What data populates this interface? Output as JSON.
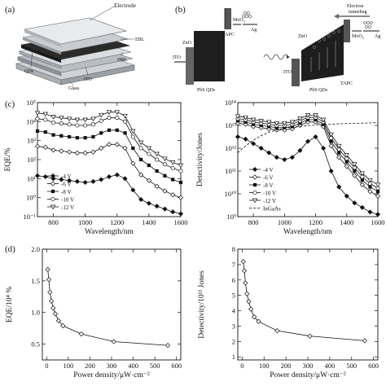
{
  "panels": {
    "a": "(a)",
    "b": "(b)",
    "c": "(c)",
    "d": "(d)"
  },
  "device_diagram": {
    "labels": {
      "electrode": "Electrode",
      "qds": "QDs",
      "glass": "Glass",
      "ito": "ITO",
      "hbl": "HBL",
      "ebl": "EBL"
    }
  },
  "band_diagram_left": {
    "labels": {
      "zno": "ZnO",
      "ito": "ITO",
      "pbs": "PbS QDs",
      "tapc": "TAPC",
      "moo3": "MoO",
      "moo3_sub": "3",
      "ag": "Ag"
    }
  },
  "band_diagram_right": {
    "labels": {
      "electron_tunneling_1": "Electron",
      "electron_tunneling_2": "tunneling",
      "zno": "ZnO",
      "ito": "ITO",
      "pbs": "PbS QDs",
      "tapc": "TAPC",
      "moo3": "MoO",
      "moo3_sub": "3",
      "ag": "Ag"
    }
  },
  "chart_data": [
    {
      "id": "eqe_vs_wavelength",
      "type": "line",
      "xlabel": "Wavelength/nm",
      "ylabel": "EQE/%",
      "x_ticks": [
        "800",
        "1000",
        "1200",
        "1400",
        "1600"
      ],
      "y_ticks": [
        "10⁻¹",
        "10⁰",
        "10¹",
        "10²",
        "10³",
        "10⁴",
        "10⁵"
      ],
      "xlim": [
        700,
        1600
      ],
      "ylim_log10": [
        -1,
        5
      ],
      "x": [
        700,
        750,
        800,
        850,
        900,
        950,
        1000,
        1050,
        1100,
        1150,
        1200,
        1250,
        1300,
        1350,
        1400,
        1450,
        1500,
        1550,
        1600
      ],
      "series": [
        {
          "name": "-4 V",
          "marker": "diamond-filled",
          "values_log10": [
            1.15,
            1.1,
            1.0,
            0.95,
            0.9,
            0.85,
            0.8,
            0.85,
            0.95,
            1.1,
            1.2,
            1.0,
            0.4,
            -0.1,
            -0.3,
            -0.45,
            -0.6,
            -0.75,
            -0.85
          ]
        },
        {
          "name": "-6 V",
          "marker": "diamond-open",
          "values_log10": [
            2.7,
            2.65,
            2.5,
            2.45,
            2.4,
            2.35,
            2.35,
            2.4,
            2.6,
            2.8,
            2.8,
            2.6,
            1.8,
            1.2,
            0.9,
            0.6,
            0.35,
            0.15,
            0.0
          ]
        },
        {
          "name": "-8 V",
          "marker": "square-filled",
          "values_log10": [
            3.5,
            3.45,
            3.3,
            3.25,
            3.2,
            3.15,
            3.15,
            3.2,
            3.4,
            3.55,
            3.55,
            3.4,
            2.6,
            2.0,
            1.7,
            1.4,
            1.15,
            0.95,
            0.8
          ]
        },
        {
          "name": "-10 V",
          "marker": "circle-open",
          "values_log10": [
            4.15,
            4.1,
            3.95,
            3.9,
            3.85,
            3.8,
            3.8,
            3.85,
            4.05,
            4.2,
            4.2,
            4.0,
            3.2,
            2.6,
            2.3,
            2.0,
            1.75,
            1.55,
            1.4
          ]
        },
        {
          "name": "-12 V",
          "marker": "triangle-open",
          "values_log10": [
            4.45,
            4.4,
            4.25,
            4.2,
            4.15,
            4.1,
            4.1,
            4.15,
            4.35,
            4.5,
            4.5,
            4.3,
            3.5,
            2.9,
            2.6,
            2.3,
            2.05,
            1.85,
            1.7
          ]
        }
      ],
      "legend": "bottom-left"
    },
    {
      "id": "detectivity_vs_wavelength",
      "type": "line",
      "xlabel": "Wavelength/nm",
      "ylabel": "Detectivity/Jones",
      "x_ticks": [
        "800",
        "1000",
        "1200",
        "1400",
        "1600"
      ],
      "y_ticks": [
        "10⁹",
        "10¹⁰",
        "10¹¹",
        "10¹²",
        "10¹³",
        "10¹⁴"
      ],
      "xlim": [
        700,
        1600
      ],
      "ylim_log10": [
        9,
        14
      ],
      "x": [
        700,
        750,
        800,
        850,
        900,
        950,
        1000,
        1050,
        1100,
        1150,
        1200,
        1250,
        1300,
        1350,
        1400,
        1450,
        1500,
        1550,
        1600
      ],
      "series": [
        {
          "name": "-4 V",
          "marker": "diamond-filled",
          "values_log10": [
            12.5,
            12.4,
            12.2,
            12.0,
            11.8,
            11.6,
            11.5,
            11.6,
            11.9,
            12.3,
            12.5,
            12.0,
            11.0,
            10.3,
            9.9,
            9.6,
            9.4,
            9.2,
            9.1
          ]
        },
        {
          "name": "-6 V",
          "marker": "diamond-open",
          "values_log10": [
            13.1,
            13.05,
            12.95,
            12.9,
            12.85,
            12.8,
            12.8,
            12.85,
            13.0,
            13.15,
            13.15,
            12.95,
            12.1,
            11.6,
            11.2,
            10.8,
            10.4,
            10.1,
            9.9
          ]
        },
        {
          "name": "-8 V",
          "marker": "square-filled",
          "values_log10": [
            13.2,
            13.15,
            13.05,
            13.0,
            12.95,
            12.9,
            12.9,
            12.95,
            13.1,
            13.25,
            13.25,
            13.05,
            12.3,
            11.8,
            11.4,
            11.0,
            10.6,
            10.3,
            10.1
          ]
        },
        {
          "name": "-10 V",
          "marker": "circle-open",
          "values_log10": [
            13.3,
            13.25,
            13.15,
            13.1,
            13.05,
            13.0,
            13.0,
            13.05,
            13.2,
            13.35,
            13.35,
            13.15,
            12.45,
            11.95,
            11.55,
            11.15,
            10.75,
            10.45,
            10.25
          ]
        },
        {
          "name": "-12 V",
          "marker": "triangle-open",
          "values_log10": [
            13.4,
            13.35,
            13.25,
            13.2,
            13.15,
            13.1,
            13.1,
            13.15,
            13.3,
            13.45,
            13.45,
            13.25,
            12.6,
            12.1,
            11.7,
            11.3,
            10.9,
            10.6,
            10.4
          ]
        },
        {
          "name": "InGaAs",
          "marker": "dashed",
          "values_log10": [
            11.8,
            12.1,
            12.35,
            12.55,
            12.7,
            12.8,
            12.87,
            12.92,
            12.96,
            12.99,
            13.01,
            13.03,
            13.05,
            13.07,
            13.08,
            13.09,
            13.1,
            13.11,
            13.12
          ]
        }
      ],
      "legend": "bottom-left"
    },
    {
      "id": "eqe_vs_power",
      "type": "line",
      "xlabel": "Power density/μW·cm⁻²",
      "ylabel": "EQE/10⁴ %",
      "x_ticks": [
        "0",
        "100",
        "200",
        "300",
        "400",
        "500",
        "600"
      ],
      "y_ticks": [
        "0.5",
        "1.0",
        "1.5",
        "2.0"
      ],
      "xlim": [
        -20,
        620
      ],
      "ylim": [
        0.25,
        2.0
      ],
      "x": [
        5,
        10,
        15,
        22,
        30,
        40,
        55,
        75,
        160,
        310,
        560
      ],
      "y": [
        1.68,
        1.52,
        1.32,
        1.18,
        1.07,
        0.98,
        0.87,
        0.79,
        0.66,
        0.54,
        0.48
      ],
      "marker": "diamond-open"
    },
    {
      "id": "detectivity_vs_power",
      "type": "line",
      "xlabel": "Power density/μW·cm⁻²",
      "ylabel": "Detectivity/10¹³ Jones",
      "x_ticks": [
        "0",
        "100",
        "200",
        "300",
        "400",
        "500",
        "600"
      ],
      "y_ticks": [
        "1",
        "2",
        "3",
        "4",
        "5",
        "6",
        "7",
        "8"
      ],
      "xlim": [
        -20,
        620
      ],
      "ylim": [
        0.8,
        8
      ],
      "x": [
        5,
        10,
        15,
        22,
        30,
        40,
        55,
        75,
        160,
        310,
        560
      ],
      "y": [
        7.2,
        6.6,
        5.8,
        5.1,
        4.6,
        4.1,
        3.6,
        3.3,
        2.7,
        2.35,
        2.05
      ],
      "marker": "diamond-open"
    }
  ]
}
